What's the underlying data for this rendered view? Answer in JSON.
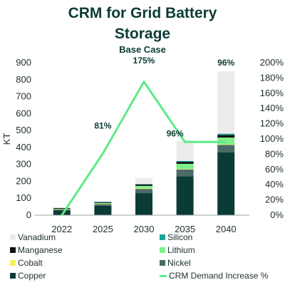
{
  "chart_data": {
    "type": "bar",
    "title_line1": "CRM for Grid Battery",
    "title_line2": "Storage",
    "subtitle": "Base Case",
    "ylabel": "KT",
    "ylim": [
      0,
      900
    ],
    "yticks": [
      "0",
      "100",
      "200",
      "300",
      "400",
      "500",
      "600",
      "700",
      "800",
      "900"
    ],
    "y2lim": [
      0,
      200
    ],
    "y2ticks": [
      "0%",
      "20%",
      "40%",
      "60%",
      "80%",
      "100%",
      "120%",
      "140%",
      "160%",
      "180%",
      "200%"
    ],
    "categories": [
      "2022",
      "2025",
      "2030",
      "2035",
      "2040"
    ],
    "stacked": true,
    "series": [
      {
        "name": "Copper",
        "color": "#0b3b35",
        "values": [
          28,
          55,
          130,
          230,
          370
        ]
      },
      {
        "name": "Nickel",
        "color": "#4a6b66",
        "values": [
          6,
          10,
          25,
          40,
          45
        ]
      },
      {
        "name": "Cobalt",
        "color": "#f5ef5a",
        "values": [
          1,
          2,
          3,
          3,
          3
        ]
      },
      {
        "name": "Lithium",
        "color": "#7ef08a",
        "values": [
          3,
          5,
          15,
          30,
          40
        ]
      },
      {
        "name": "Manganese",
        "color": "#111111",
        "values": [
          4,
          5,
          8,
          12,
          15
        ]
      },
      {
        "name": "Silicon",
        "color": "#1aa39a",
        "values": [
          1,
          2,
          3,
          5,
          8
        ]
      },
      {
        "name": "Vanadium",
        "color": "#ececec",
        "values": [
          1,
          3,
          36,
          120,
          369
        ]
      }
    ],
    "line_series": {
      "name": "CRM Demand Increase %",
      "color": "#5eea8a",
      "axis": "right",
      "values": [
        0,
        81,
        175,
        96,
        96
      ],
      "labels": [
        "",
        "81%",
        "175%",
        "96%",
        "96%"
      ]
    },
    "legend_order": [
      "Vanadium",
      "Silicon",
      "Manganese",
      "Lithium",
      "Cobalt",
      "Nickel",
      "Copper",
      "CRM Demand Increase %"
    ],
    "legend_position": "bottom"
  }
}
